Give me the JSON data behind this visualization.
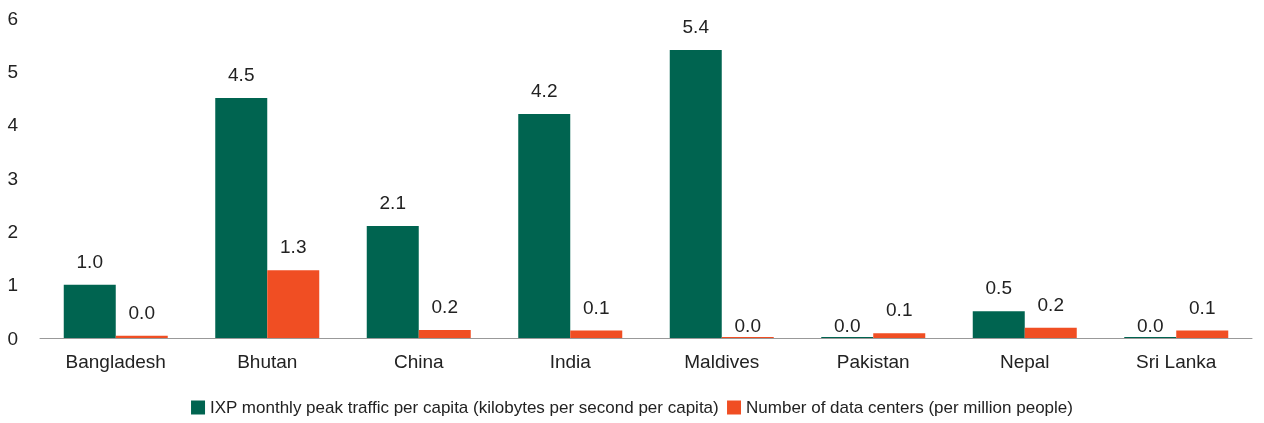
{
  "chart_data": {
    "type": "bar",
    "categories": [
      "Bangladesh",
      "Bhutan",
      "China",
      "India",
      "Maldives",
      "Pakistan",
      "Nepal",
      "Sri Lanka"
    ],
    "series": [
      {
        "name": "IXP monthly peak traffic per capita (kilobytes per second per capita)",
        "color": "#006450",
        "values": [
          1.0,
          4.5,
          2.1,
          4.2,
          5.4,
          0.0,
          0.5,
          0.0
        ],
        "value_labels": [
          "1.0",
          "4.5",
          "2.1",
          "4.2",
          "5.4",
          "0.0",
          "0.5",
          "0.0"
        ]
      },
      {
        "name": "Number of data centers (per million people)",
        "color": "#f04e23",
        "values": [
          0.04,
          1.27,
          0.15,
          0.14,
          0.0,
          0.09,
          0.19,
          0.14
        ],
        "value_labels": [
          "0.0",
          "1.3",
          "0.2",
          "0.1",
          "0.0",
          "0.1",
          "0.2",
          "0.1"
        ]
      }
    ],
    "ylim": [
      0,
      6
    ],
    "yticks": [
      0,
      1,
      2,
      3,
      4,
      5,
      6
    ],
    "grid": false,
    "legend": "bottom"
  }
}
